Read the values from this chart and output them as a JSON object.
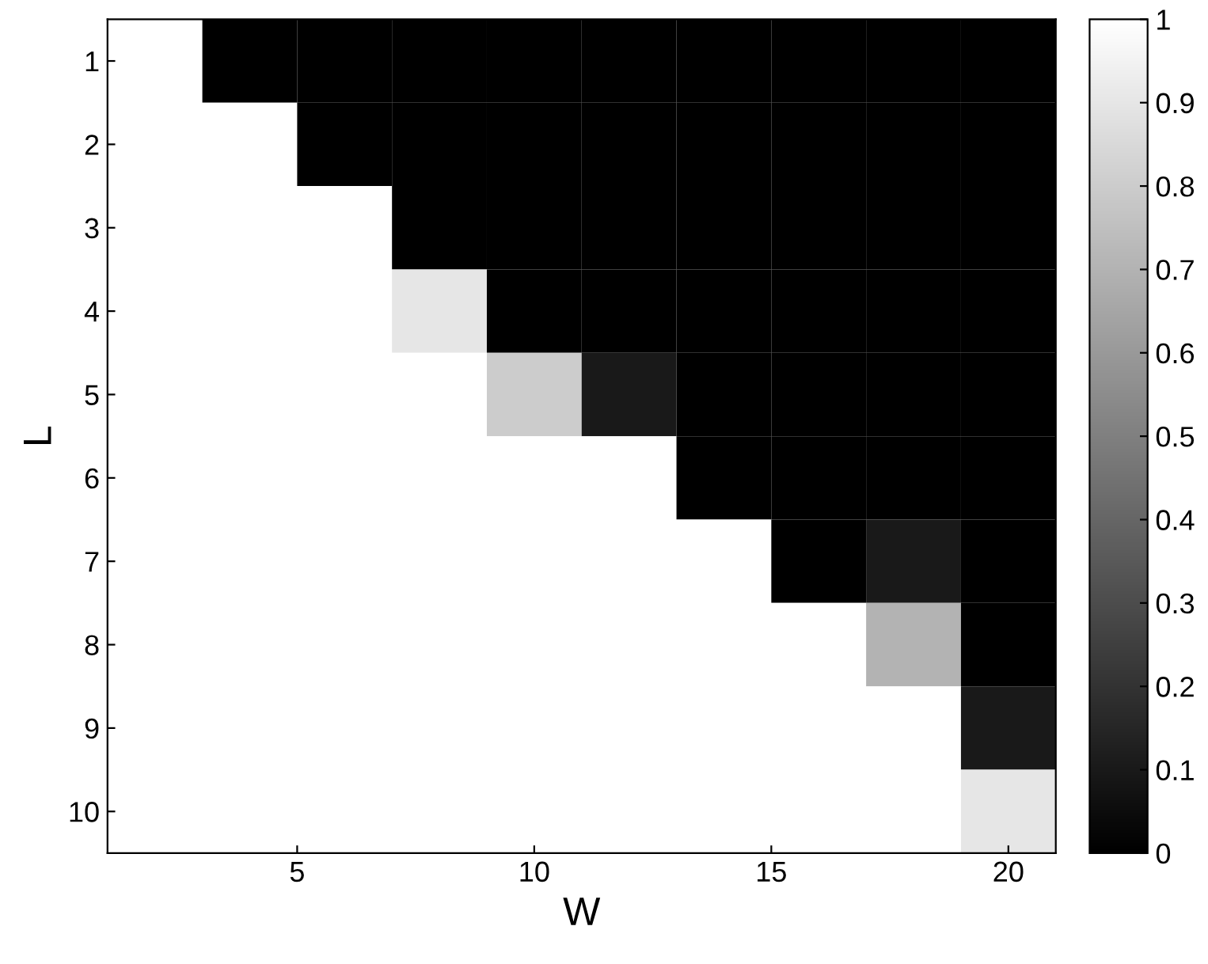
{
  "chart_data": {
    "type": "heatmap",
    "xlabel": "W",
    "ylabel": "L",
    "x": [
      2,
      4,
      6,
      8,
      10,
      12,
      14,
      16,
      18,
      20
    ],
    "xlim": [
      1,
      21
    ],
    "xticks": [
      5,
      10,
      15,
      20
    ],
    "y_categories": [
      "1",
      "2",
      "3",
      "4",
      "5",
      "6",
      "7",
      "8",
      "9",
      "10"
    ],
    "cells": [
      [
        1,
        0,
        0,
        0,
        0,
        0,
        0,
        0,
        0,
        0
      ],
      [
        1,
        1,
        0,
        0,
        0,
        0,
        0,
        0,
        0,
        0
      ],
      [
        1,
        1,
        1,
        0,
        0,
        0,
        0,
        0,
        0,
        0
      ],
      [
        1,
        1,
        1,
        0.9,
        0,
        0,
        0,
        0,
        0,
        0
      ],
      [
        1,
        1,
        1,
        1,
        0.8,
        0.1,
        0,
        0,
        0,
        0
      ],
      [
        1,
        1,
        1,
        1,
        1,
        1,
        0,
        0,
        0,
        0
      ],
      [
        1,
        1,
        1,
        1,
        1,
        1,
        1,
        0,
        0.1,
        0
      ],
      [
        1,
        1,
        1,
        1,
        1,
        1,
        1,
        1,
        0.7,
        0
      ],
      [
        1,
        1,
        1,
        1,
        1,
        1,
        1,
        1,
        1,
        0.1
      ],
      [
        1,
        1,
        1,
        1,
        1,
        1,
        1,
        1,
        1,
        0.9
      ]
    ],
    "clim": [
      0,
      1
    ],
    "cticks": [
      0,
      0.1,
      0.2,
      0.3,
      0.4,
      0.5,
      0.6,
      0.7,
      0.8,
      0.9,
      1
    ]
  }
}
